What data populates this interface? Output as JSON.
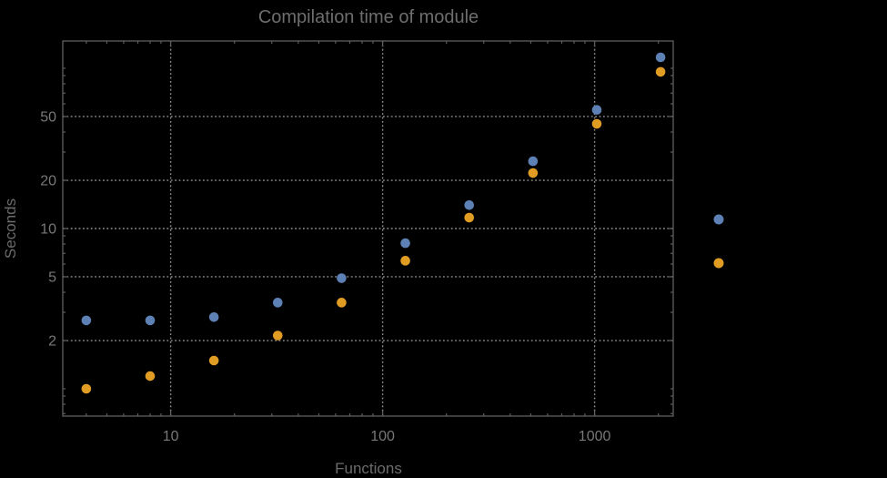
{
  "window": {
    "background_color": "#000000"
  },
  "chart_data": {
    "type": "scatter",
    "title": "Compilation time of module",
    "xlabel": "Functions",
    "ylabel": "Seconds",
    "xscale": "log",
    "yscale": "log",
    "xlim": [
      3.1,
      2400
    ],
    "ylim": [
      0.67,
      150
    ],
    "grid": "dotted",
    "grid_color": "#8f8f8f",
    "frame_color": "#5f5f5f",
    "text_color": "#6e6e6e",
    "x": [
      4,
      8,
      16,
      32,
      64,
      128,
      256,
      512,
      1024,
      2048
    ],
    "series": [
      {
        "name": "series-1-blue",
        "color": "#5E81B5",
        "values": [
          2.67,
          2.67,
          2.8,
          3.45,
          4.9,
          8.1,
          14.0,
          26.3,
          55,
          117
        ]
      },
      {
        "name": "series-2-orange",
        "color": "#E19C24",
        "values": [
          1.0,
          1.2,
          1.5,
          2.15,
          3.45,
          6.3,
          11.7,
          22.2,
          45,
          95
        ]
      }
    ],
    "x_ticks": {
      "major": [
        10,
        100,
        1000
      ],
      "major_labels": [
        "10",
        "100",
        "1000"
      ],
      "minor": [
        4,
        5,
        6,
        7,
        8,
        9,
        20,
        30,
        40,
        50,
        60,
        70,
        80,
        90,
        200,
        300,
        400,
        500,
        600,
        700,
        800,
        900,
        2000
      ]
    },
    "y_ticks": {
      "major": [
        2,
        5,
        10,
        20,
        50
      ],
      "major_labels": [
        "2",
        "5",
        "10",
        "20",
        "50"
      ],
      "minor": [
        0.7,
        0.8,
        0.9,
        1,
        3,
        4,
        6,
        7,
        8,
        9,
        30,
        40,
        60,
        70,
        80,
        90,
        100
      ]
    },
    "legend": {
      "position": "right-of-plot",
      "labels_visible": false,
      "entries": [
        {
          "marker_color": "#5E81B5"
        },
        {
          "marker_color": "#E19C24"
        }
      ]
    }
  }
}
